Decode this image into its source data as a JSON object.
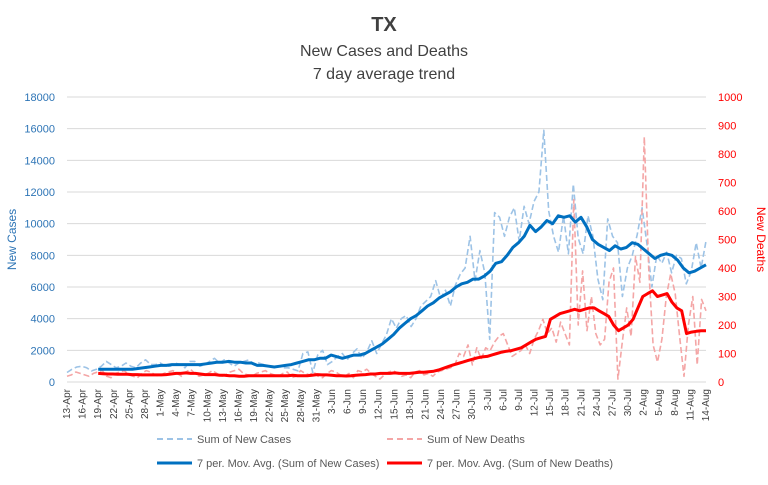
{
  "chart_data": {
    "type": "line",
    "title": "TX",
    "subtitle_lines": [
      "New Cases and Deaths",
      "7 day average trend"
    ],
    "ylabel_left": "New Cases",
    "ylabel_right": "New Deaths",
    "left_axis": {
      "min": 0,
      "max": 18000,
      "ticks": [
        0,
        2000,
        4000,
        6000,
        8000,
        10000,
        12000,
        14000,
        16000,
        18000
      ],
      "color": "#2e75b6"
    },
    "right_axis": {
      "min": 0,
      "max": 1000,
      "ticks": [
        0,
        100,
        200,
        300,
        400,
        500,
        600,
        700,
        800,
        900,
        1000
      ],
      "color": "#ff0000"
    },
    "x_tick_labels": [
      "13-Apr",
      "16-Apr",
      "19-Apr",
      "22-Apr",
      "25-Apr",
      "28-Apr",
      "1-May",
      "4-May",
      "7-May",
      "10-May",
      "13-May",
      "16-May",
      "19-May",
      "22-May",
      "25-May",
      "28-May",
      "31-May",
      "3-Jun",
      "6-Jun",
      "9-Jun",
      "12-Jun",
      "15-Jun",
      "18-Jun",
      "21-Jun",
      "24-Jun",
      "27-Jun",
      "30-Jun",
      "3-Jul",
      "6-Jul",
      "9-Jul",
      "12-Jul",
      "15-Jul",
      "18-Jul",
      "21-Jul",
      "24-Jul",
      "27-Jul",
      "30-Jul",
      "2-Aug",
      "5-Aug",
      "8-Aug",
      "11-Aug",
      "14-Aug"
    ],
    "grid": "horizontal",
    "legend_position": "bottom",
    "series": [
      {
        "name": "Sum of New Cases",
        "axis": "left",
        "style": "dashed",
        "color": "#9dc3e6",
        "values": [
          600,
          800,
          950,
          1000,
          900,
          700,
          800,
          1000,
          1300,
          1100,
          900,
          1000,
          1200,
          1000,
          900,
          1200,
          1400,
          1100,
          1100,
          1200,
          1000,
          1000,
          1200,
          1100,
          900,
          1300,
          1300,
          1000,
          1100,
          1300,
          1500,
          1200,
          1400,
          1200,
          1000,
          1200,
          1300,
          1400,
          1100,
          1200,
          1100,
          1000,
          900,
          1000,
          900,
          900,
          800,
          700,
          1800,
          1900,
          600,
          1700,
          2000,
          1100,
          1300,
          1600,
          1800,
          1400,
          1800,
          2100,
          1500,
          1900,
          2600,
          1800,
          2400,
          3000,
          4000,
          3400,
          4000,
          4200,
          3500,
          4000,
          4800,
          5100,
          5400,
          6400,
          5300,
          5800,
          4800,
          6100,
          6800,
          7200,
          9200,
          6400,
          8300,
          6900,
          2700,
          10700,
          10400,
          9200,
          10400,
          11000,
          8900,
          11100,
          10000,
          11400,
          12000,
          15900,
          10800,
          9200,
          8200,
          10500,
          8100,
          12500,
          9100,
          8100,
          10500,
          9200,
          6500,
          5200,
          10300,
          9200,
          8800,
          5400,
          7200,
          8000,
          9300,
          11000,
          8700,
          6000,
          8000,
          7500,
          8200,
          6900,
          8000,
          7800,
          6200,
          7000,
          8800,
          7200,
          8900
        ]
      },
      {
        "name": "Sum of New Deaths",
        "axis": "right",
        "style": "dashed",
        "color": "#f4a6a6",
        "values": [
          20,
          25,
          35,
          30,
          25,
          20,
          30,
          35,
          40,
          20,
          15,
          30,
          35,
          40,
          25,
          20,
          15,
          30,
          40,
          35,
          25,
          20,
          30,
          35,
          40,
          30,
          20,
          35,
          45,
          30,
          20,
          25,
          30,
          40,
          30,
          20,
          25,
          35,
          40,
          45,
          30,
          25,
          20,
          30,
          35,
          40,
          30,
          25,
          20,
          30,
          35,
          15,
          20,
          40,
          30,
          25,
          35,
          20,
          15,
          30,
          40,
          35,
          25,
          20,
          30,
          15,
          40,
          35,
          45,
          30,
          20,
          10,
          25,
          35,
          40,
          30,
          20,
          25,
          15,
          35,
          40,
          25,
          30,
          20,
          35,
          40,
          45,
          50,
          60,
          100,
          90,
          130,
          60,
          120,
          80,
          120,
          110,
          140,
          160,
          170,
          130,
          90,
          100,
          110,
          130,
          100,
          150,
          180,
          220,
          170,
          190,
          140,
          210,
          170,
          130,
          640,
          200,
          390,
          180,
          300,
          170,
          130,
          150,
          350,
          400,
          10,
          140,
          260,
          160,
          440,
          350,
          860,
          400,
          130,
          70,
          150,
          300,
          380,
          310,
          160,
          20,
          200,
          300,
          60,
          290,
          250
        ]
      },
      {
        "name": "7 per. Mov. Avg. (Sum of New Cases)",
        "axis": "left",
        "style": "solid",
        "color": "#0070c0",
        "values": [
          800,
          800,
          800,
          800,
          800,
          800,
          800,
          850,
          900,
          950,
          1000,
          1050,
          1050,
          1100,
          1100,
          1100,
          1100,
          1100,
          1100,
          1150,
          1200,
          1250,
          1250,
          1300,
          1250,
          1250,
          1200,
          1200,
          1050,
          1050,
          1000,
          950,
          1000,
          1050,
          1100,
          1200,
          1300,
          1400,
          1400,
          1500,
          1500,
          1700,
          1600,
          1500,
          1600,
          1700,
          1700,
          1800,
          2000,
          2200,
          2400,
          2700,
          3000,
          3400,
          3700,
          4000,
          4200,
          4500,
          4800,
          5000,
          5300,
          5500,
          5700,
          6000,
          6200,
          6300,
          6500,
          6500,
          6700,
          7000,
          7500,
          7600,
          8000,
          8500,
          8800,
          9200,
          9900,
          9500,
          9800,
          10200,
          10000,
          10500,
          10400,
          10500,
          10100,
          10400,
          9800,
          9000,
          8700,
          8500,
          8300,
          8600,
          8400,
          8500,
          8800,
          8700,
          8400,
          8100,
          7800,
          8000,
          8100,
          8000,
          7700,
          7200,
          6900,
          7000,
          7200,
          7400
        ]
      },
      {
        "name": "7 per. Mov. Avg. (Sum of New Deaths)",
        "axis": "right",
        "style": "solid",
        "color": "#ff0000",
        "values": [
          30,
          29,
          28,
          28,
          27,
          27,
          27,
          26,
          26,
          25,
          25,
          25,
          25,
          25,
          26,
          28,
          30,
          30,
          32,
          30,
          30,
          28,
          26,
          26,
          26,
          24,
          24,
          22,
          22,
          20,
          20,
          22,
          22,
          22,
          22,
          22,
          22,
          22,
          22,
          22,
          24,
          22,
          22,
          22,
          24,
          26,
          25,
          25,
          24,
          22,
          22,
          21,
          22,
          24,
          25,
          26,
          28,
          28,
          30,
          30,
          30,
          32,
          30,
          30,
          30,
          32,
          34,
          34,
          36,
          38,
          42,
          48,
          54,
          60,
          65,
          70,
          75,
          80,
          85,
          88,
          90,
          95,
          100,
          105,
          108,
          110,
          115,
          120,
          130,
          140,
          150,
          155,
          160,
          220,
          230,
          240,
          245,
          250,
          255,
          250,
          255,
          260,
          260,
          250,
          240,
          230,
          200,
          180,
          190,
          200,
          220,
          260,
          300,
          310,
          320,
          300,
          305,
          310,
          280,
          260,
          250,
          170,
          175,
          178,
          180,
          180
        ]
      }
    ]
  }
}
